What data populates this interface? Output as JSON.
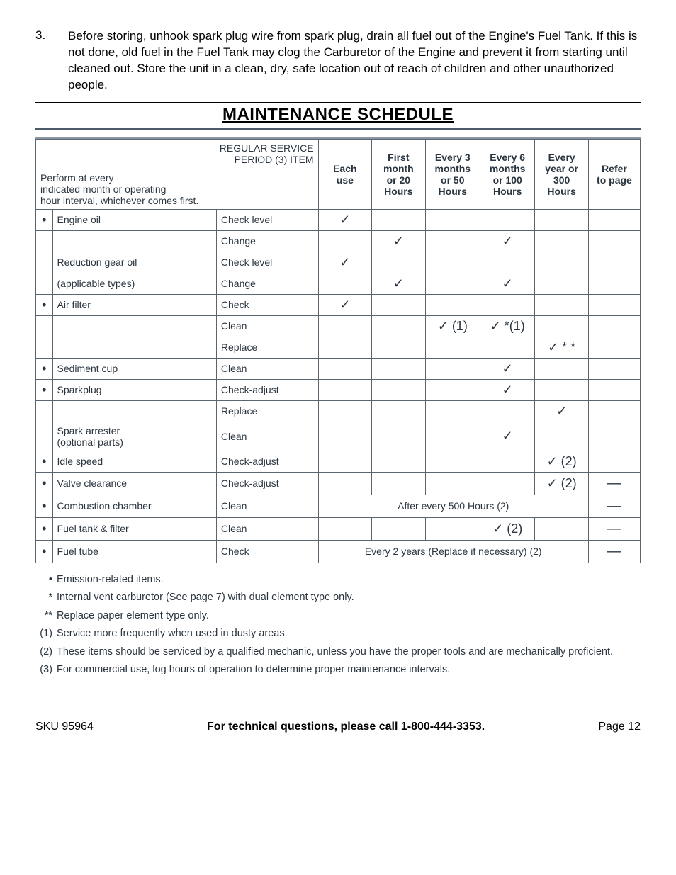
{
  "intro": {
    "number": "3.",
    "text": "Before storing, unhook spark plug wire from spark plug, drain all fuel out of the Engine's Fuel Tank.  If this is not done, old fuel in the Fuel Tank may clog the Carburetor of the Engine and prevent it from starting until cleaned out.  Store the unit in a clean, dry, safe location out of reach of children and other unauthorized people."
  },
  "title": "MAINTENANCE SCHEDULE",
  "header": {
    "regular": "REGULAR SERVICE",
    "period": "PERIOD (3) ITEM",
    "perform1": "Perform at every",
    "perform2": "indicated month or operating",
    "perform3": "hour interval, whichever comes first.",
    "cols": {
      "c1a": "Each",
      "c1b": "use",
      "c2a": "First",
      "c2b": "month",
      "c2c": "or 20",
      "c2d": "Hours",
      "c3a": "Every 3",
      "c3b": "months",
      "c3c": "or 50",
      "c3d": "Hours",
      "c4a": "Every 6",
      "c4b": "months",
      "c4c": "or 100",
      "c4d": "Hours",
      "c5a": "Every",
      "c5b": "year or",
      "c5c": "300",
      "c5d": "Hours",
      "ra": "Refer",
      "rb": "to page"
    }
  },
  "check": "✓",
  "rows": {
    "r1": {
      "b": "•",
      "item": "Engine oil",
      "action": "Check level",
      "c1": "✓"
    },
    "r2": {
      "item": "",
      "action": "Change",
      "c2": "✓",
      "c4": "✓"
    },
    "r3": {
      "item": "Reduction gear oil",
      "action": "Check level",
      "c1": "✓"
    },
    "r4": {
      "item": "(applicable types)",
      "action": "Change",
      "c2": "✓",
      "c4": "✓"
    },
    "r5": {
      "b": "•",
      "item": "Air filter",
      "action": "Check",
      "c1": "✓"
    },
    "r6": {
      "item": "",
      "action": "Clean",
      "c3": "✓ (1)",
      "c4": "✓ *(1)"
    },
    "r7": {
      "item": "",
      "action": "Replace",
      "c5": "✓ * *"
    },
    "r8": {
      "b": "•",
      "item": "Sediment cup",
      "action": "Clean",
      "c4": "✓"
    },
    "r9": {
      "b": "•",
      "item": "Sparkplug",
      "action": "Check-adjust",
      "c4": "✓"
    },
    "r10": {
      "item": "",
      "action": "Replace",
      "c5": "✓"
    },
    "r11": {
      "item1": "Spark arrester",
      "item2": "(optional parts)",
      "action": "Clean",
      "c4": "✓"
    },
    "r12": {
      "b": "•",
      "item": "Idle speed",
      "action": "Check-adjust",
      "c5": "✓ (2)"
    },
    "r13": {
      "b": "•",
      "item": "Valve clearance",
      "action": "Check-adjust",
      "c5": "✓ (2)",
      "ref": "—"
    },
    "r14": {
      "b": "•",
      "item": "Combustion chamber",
      "action": "Clean",
      "span": "After every 500 Hours (2)",
      "ref": "—"
    },
    "r15": {
      "b": "•",
      "item": "Fuel tank & filter",
      "action": "Clean",
      "c4": "✓ (2)",
      "ref": "—"
    },
    "r16": {
      "b": "•",
      "item": "Fuel tube",
      "action": "Check",
      "span": "Every 2 years (Replace if necessary) (2)",
      "ref": "—"
    }
  },
  "notes": {
    "n1": {
      "m": "•",
      "t": "Emission-related items."
    },
    "n2": {
      "m": "*",
      "t": "Internal vent carburetor (See page 7) with dual element type only."
    },
    "n3": {
      "m": "**",
      "t": "Replace paper element type only."
    },
    "n4": {
      "m": "(1)",
      "t": "Service more frequently when used in dusty areas."
    },
    "n5": {
      "m": "(2)",
      "t": "These items should be serviced by a qualified mechanic, unless you have the proper tools and are mechanically proficient."
    },
    "n6": {
      "m": "(3)",
      "t": "For commercial use, log hours of operation to determine proper maintenance intervals."
    }
  },
  "footer": {
    "sku": "SKU 95964",
    "mid": "For technical questions, please call 1-800-444-3353.",
    "page": "Page 12"
  }
}
